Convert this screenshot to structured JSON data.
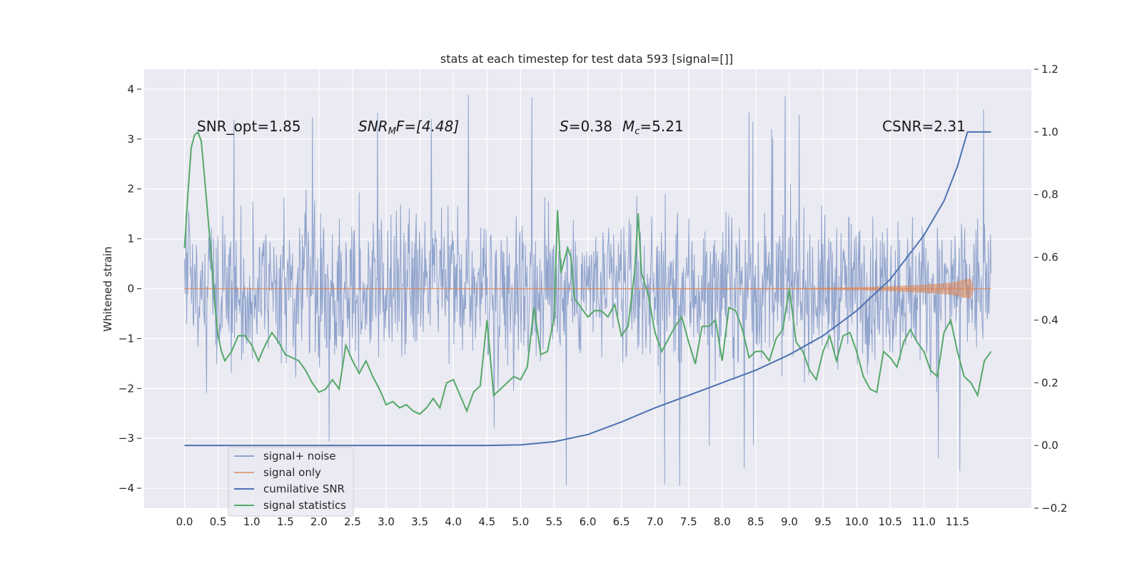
{
  "chart_data": {
    "type": "line",
    "title": "stats at each timestep for test data 593 [signal=[]]",
    "ylabel": "Whitened strain",
    "xlabel": "",
    "xlim": [
      -0.6,
      12.6
    ],
    "ylim": [
      -4.4,
      4.4
    ],
    "y2lim": [
      -0.2,
      1.2
    ],
    "x_ticks": [
      0.0,
      0.5,
      1.0,
      1.5,
      2.0,
      2.5,
      3.0,
      3.5,
      4.0,
      4.5,
      5.0,
      5.5,
      6.0,
      6.5,
      7.0,
      7.5,
      8.0,
      8.5,
      9.0,
      9.5,
      10.0,
      10.5,
      11.0,
      11.5
    ],
    "x_tick_labels": [
      "0.0",
      "0.5",
      "1.0",
      "1.5",
      "2.0",
      "2.5",
      "3.0",
      "3.5",
      "4.0",
      "4.5",
      "5.0",
      "5.5",
      "6.0",
      "6.5",
      "7.0",
      "7.5",
      "8.0",
      "8.5",
      "9.0",
      "9.5",
      "10.0",
      "10.5",
      "11.0",
      "11.5"
    ],
    "y_ticks": [
      -4,
      -3,
      -2,
      -1,
      0,
      1,
      2,
      3,
      4
    ],
    "y_tick_labels": [
      "−4",
      "−3",
      "−2",
      "−1",
      "0",
      "1",
      "2",
      "3",
      "4"
    ],
    "y2_ticks": [
      -0.2,
      0.0,
      0.2,
      0.4,
      0.6,
      0.8,
      1.0,
      1.2
    ],
    "y2_tick_labels": [
      "−0.2",
      "0.0",
      "0.2",
      "0.4",
      "0.6",
      "0.8",
      "1.0",
      "1.2"
    ],
    "annotations": [
      {
        "text": "SNR_opt=1.85",
        "x": 0.2,
        "y": 3.2
      },
      {
        "text_pre": "SNR",
        "text_sub": "M",
        "text_post": "F=[4.48]",
        "x": 2.6,
        "y": 3.2
      },
      {
        "text_s_var": "S",
        "text_s_val": "=0.38",
        "text_m_var": "M",
        "text_m_sub": "c",
        "text_m_val": "=5.21",
        "x": 5.6,
        "y": 3.2
      },
      {
        "text": "CSNR=2.31",
        "x": 10.4,
        "y": 3.2
      }
    ],
    "noise_envelope": {
      "x_start": 0.0,
      "x_end": 12.0,
      "typical_upper": 2.2,
      "typical_lower": -2.2,
      "peak_max": 4.0,
      "peak_min": -4.1
    },
    "series": [
      {
        "name": "signal+ noise",
        "axis": "left",
        "color": "#8fa3cc",
        "description_values": "dense noise, approx within ±2.5, spikes to ±4"
      },
      {
        "name": "signal only",
        "axis": "left",
        "color": "#dd8452",
        "x": [
          0.0,
          9.0,
          10.0,
          10.5,
          11.0,
          11.4,
          11.6,
          11.7,
          11.75,
          12.0
        ],
        "amp": [
          0.0,
          0.01,
          0.03,
          0.05,
          0.08,
          0.12,
          0.18,
          0.2,
          0.0,
          0.0
        ]
      },
      {
        "name": "cumilative SNR",
        "axis": "right",
        "color": "#4c72b0",
        "x": [
          0.0,
          4.5,
          5.0,
          5.5,
          6.0,
          6.5,
          7.0,
          7.5,
          8.0,
          8.5,
          9.0,
          9.5,
          10.0,
          10.5,
          11.0,
          11.3,
          11.5,
          11.65,
          12.0
        ],
        "values": [
          0.0,
          0.0,
          0.002,
          0.012,
          0.035,
          0.075,
          0.12,
          0.16,
          0.2,
          0.24,
          0.29,
          0.35,
          0.43,
          0.53,
          0.67,
          0.78,
          0.89,
          1.0,
          1.0
        ]
      },
      {
        "name": "signal statistics",
        "axis": "right",
        "color": "#55a868",
        "x": [
          0.0,
          0.05,
          0.1,
          0.15,
          0.2,
          0.25,
          0.3,
          0.4,
          0.45,
          0.5,
          0.55,
          0.6,
          0.7,
          0.8,
          0.9,
          1.0,
          1.1,
          1.2,
          1.3,
          1.4,
          1.5,
          1.6,
          1.7,
          1.8,
          1.9,
          2.0,
          2.1,
          2.2,
          2.3,
          2.4,
          2.5,
          2.6,
          2.7,
          2.8,
          2.9,
          3.0,
          3.1,
          3.2,
          3.3,
          3.4,
          3.5,
          3.6,
          3.7,
          3.8,
          3.9,
          4.0,
          4.1,
          4.2,
          4.3,
          4.4,
          4.5,
          4.6,
          4.7,
          4.8,
          4.9,
          5.0,
          5.1,
          5.2,
          5.3,
          5.4,
          5.5,
          5.55,
          5.6,
          5.7,
          5.75,
          5.8,
          5.9,
          6.0,
          6.1,
          6.2,
          6.3,
          6.4,
          6.5,
          6.6,
          6.7,
          6.75,
          6.8,
          6.9,
          7.0,
          7.1,
          7.2,
          7.3,
          7.4,
          7.5,
          7.6,
          7.7,
          7.8,
          7.9,
          8.0,
          8.1,
          8.2,
          8.3,
          8.4,
          8.5,
          8.6,
          8.7,
          8.8,
          8.9,
          9.0,
          9.1,
          9.2,
          9.3,
          9.4,
          9.5,
          9.6,
          9.7,
          9.8,
          9.9,
          10.0,
          10.1,
          10.2,
          10.3,
          10.4,
          10.5,
          10.6,
          10.7,
          10.8,
          10.9,
          11.0,
          11.1,
          11.2,
          11.3,
          11.4,
          11.5,
          11.6,
          11.7,
          11.8,
          11.9,
          12.0
        ],
        "values": [
          0.63,
          0.8,
          0.95,
          0.99,
          1.0,
          0.97,
          0.85,
          0.6,
          0.45,
          0.35,
          0.3,
          0.27,
          0.3,
          0.35,
          0.35,
          0.32,
          0.27,
          0.32,
          0.36,
          0.33,
          0.29,
          0.28,
          0.27,
          0.24,
          0.2,
          0.17,
          0.18,
          0.21,
          0.18,
          0.32,
          0.27,
          0.23,
          0.27,
          0.22,
          0.18,
          0.13,
          0.14,
          0.12,
          0.13,
          0.11,
          0.1,
          0.12,
          0.15,
          0.12,
          0.2,
          0.21,
          0.16,
          0.11,
          0.17,
          0.19,
          0.4,
          0.16,
          0.18,
          0.2,
          0.22,
          0.21,
          0.25,
          0.44,
          0.29,
          0.3,
          0.41,
          0.75,
          0.55,
          0.63,
          0.6,
          0.47,
          0.44,
          0.41,
          0.43,
          0.43,
          0.41,
          0.45,
          0.35,
          0.38,
          0.56,
          0.74,
          0.55,
          0.48,
          0.36,
          0.3,
          0.34,
          0.38,
          0.41,
          0.33,
          0.26,
          0.38,
          0.38,
          0.4,
          0.27,
          0.44,
          0.43,
          0.37,
          0.28,
          0.3,
          0.3,
          0.27,
          0.34,
          0.37,
          0.5,
          0.33,
          0.3,
          0.24,
          0.21,
          0.3,
          0.35,
          0.27,
          0.35,
          0.36,
          0.3,
          0.22,
          0.18,
          0.17,
          0.3,
          0.28,
          0.25,
          0.33,
          0.37,
          0.33,
          0.3,
          0.24,
          0.22,
          0.36,
          0.4,
          0.3,
          0.22,
          0.2,
          0.16,
          0.27,
          0.3
        ]
      }
    ],
    "legend": {
      "position": "lower-left",
      "entries": [
        {
          "label": "signal+ noise",
          "color": "#8fa3cc"
        },
        {
          "label": "signal only",
          "color": "#dd8452"
        },
        {
          "label": "cumilative SNR",
          "color": "#4c72b0"
        },
        {
          "label": "signal statistics",
          "color": "#55a868"
        }
      ]
    }
  }
}
